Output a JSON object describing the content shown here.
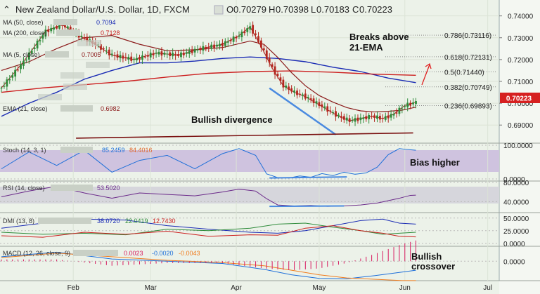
{
  "header": {
    "title": "New Zealand Dollar/U.S. Dollar, 1D, FXCM",
    "open_label": "O",
    "open": "0.70279",
    "high_label": "H",
    "high": "0.70398",
    "low_label": "L",
    "low": "0.70183",
    "close_label": "C",
    "close": "0.70223"
  },
  "overlays": [
    {
      "label": "MA (50, close)",
      "value": "0.7094",
      "color": "#1a2bb4"
    },
    {
      "label": "MA (200, close)",
      "value": "0.7128",
      "color": "#cc1e1e"
    },
    {
      "label": "MA (5, close)",
      "value": "0.7005",
      "color": "#8b1a1a"
    },
    {
      "label": "EMA (21, close)",
      "value": "0.6982",
      "color": "#8b1a1a"
    }
  ],
  "annotations": {
    "bullish_divergence": "Bullish divergence",
    "breaks_above_line1": "Breaks above",
    "breaks_above_line2": "21-EMA",
    "bias_higher": "Bias higher",
    "bullish_crossover_line1": "Bullish",
    "bullish_crossover_line2": "crossover"
  },
  "fibonacci": [
    {
      "ratio": "0.786",
      "value": "0.73116"
    },
    {
      "ratio": "0.618",
      "value": "0.72131"
    },
    {
      "ratio": "0.5",
      "value": "0.71440"
    },
    {
      "ratio": "0.382",
      "value": "0.70749"
    },
    {
      "ratio": "0.236",
      "value": "0.69893"
    }
  ],
  "price_tag": "0.70223",
  "indicators": {
    "stoch": {
      "label": "Stoch (14, 3, 1)",
      "k": "85.2459",
      "d": "84.4016",
      "k_color": "#1e6fd9",
      "d_color": "#e0662b"
    },
    "rsi": {
      "label": "RSI (14, close)",
      "value": "53.5020",
      "color": "#6b2a8a"
    },
    "dmi": {
      "label": "DMI (13, 8)",
      "plus": "38.0720",
      "minus": "22.0419",
      "adx": "12.7430",
      "plus_color": "#1a2bb4",
      "minus_color": "#2e8b3a",
      "adx_color": "#cc1e1e"
    },
    "macd": {
      "label": "MACD (12, 26, close, 9)",
      "hist": "0.0023",
      "macd": "-0.0020",
      "signal": "-0.0043",
      "hist_color": "#d81b60",
      "macd_color": "#1e6fd9",
      "signal_color": "#f07c1e"
    }
  },
  "colors": {
    "up_candle": "#2e8b3a",
    "down_candle": "#b3261e",
    "price_tag_bg": "#d62020",
    "trendline": "#4a8ae0",
    "divergence_line": "#7a1010",
    "fib_line": "#888888"
  },
  "chart_data": {
    "type": "line",
    "title": "New Zealand Dollar/U.S. Dollar, 1D, FXCM",
    "x_tick_labels": [
      "Feb",
      "Mar",
      "Apr",
      "May",
      "Jun",
      "Jul"
    ],
    "x_tick_days": [
      26,
      54,
      85,
      115,
      146,
      176
    ],
    "price_axis": {
      "ylim": [
        0.683,
        0.746
      ],
      "ticks": [
        "0.74000",
        "0.73000",
        "0.72000",
        "0.71000",
        "0.70000",
        "0.69000"
      ]
    },
    "stoch_axis": {
      "ylim": [
        -2,
        102
      ],
      "ticks": [
        "100.0000",
        "0.0000"
      ]
    },
    "rsi_axis": {
      "ylim": [
        20,
        80
      ],
      "ticks": [
        "80.0000",
        "40.0000"
      ]
    },
    "dmi_axis": {
      "ylim": [
        -3,
        58
      ],
      "ticks": [
        "50.0000",
        "25.0000",
        "0.0000"
      ]
    },
    "macd_axis": {
      "ylim": [
        -0.004,
        0.003
      ],
      "ticks": [
        "0.0000"
      ]
    },
    "series": [
      {
        "name": "MA (50, close)",
        "x": [
          0,
          10,
          20,
          30,
          40,
          50,
          60,
          70,
          80,
          90,
          100,
          110,
          120,
          130,
          140,
          150
        ],
        "y": [
          0.694,
          0.7,
          0.705,
          0.711,
          0.715,
          0.7185,
          0.7185,
          0.7193,
          0.7205,
          0.7212,
          0.7205,
          0.719,
          0.7165,
          0.7145,
          0.7115,
          0.7094
        ]
      },
      {
        "name": "MA (200, close)",
        "x": [
          0,
          15,
          30,
          45,
          60,
          75,
          90,
          105,
          120,
          135,
          150
        ],
        "y": [
          0.705,
          0.707,
          0.7085,
          0.71,
          0.712,
          0.7137,
          0.7145,
          0.7148,
          0.7142,
          0.7133,
          0.7128
        ]
      },
      {
        "name": "EMA (21, close)",
        "x": [
          0,
          10,
          20,
          30,
          40,
          50,
          60,
          70,
          80,
          90,
          95,
          100,
          105,
          110,
          115,
          120,
          125,
          130,
          135,
          140,
          145,
          150
        ],
        "y": [
          0.715,
          0.719,
          0.725,
          0.73,
          0.731,
          0.727,
          0.724,
          0.7245,
          0.7255,
          0.7285,
          0.727,
          0.721,
          0.714,
          0.708,
          0.7035,
          0.7005,
          0.698,
          0.6965,
          0.696,
          0.6963,
          0.6968,
          0.6982
        ]
      },
      {
        "name": "MA (5, close)",
        "x": [
          0,
          8,
          16,
          22,
          28,
          34,
          40,
          48,
          56,
          64,
          72,
          80,
          86,
          90,
          94,
          98,
          102,
          106,
          110,
          114,
          118,
          122,
          126,
          130,
          134,
          138,
          142,
          146,
          150
        ],
        "y": [
          0.707,
          0.719,
          0.733,
          0.736,
          0.731,
          0.727,
          0.722,
          0.72,
          0.723,
          0.722,
          0.725,
          0.727,
          0.731,
          0.735,
          0.726,
          0.716,
          0.708,
          0.705,
          0.703,
          0.7,
          0.697,
          0.694,
          0.692,
          0.693,
          0.694,
          0.693,
          0.695,
          0.699,
          0.7005
        ]
      },
      {
        "name": "Stoch (14, 3, 1)",
        "x": [
          0,
          10,
          20,
          30,
          40,
          50,
          60,
          70,
          80,
          86,
          92,
          96,
          100,
          104,
          108,
          112,
          116,
          120,
          124,
          128,
          132,
          136,
          140,
          144,
          146,
          150
        ],
        "y": [
          30,
          80,
          40,
          85,
          20,
          55,
          70,
          30,
          75,
          90,
          70,
          15,
          4,
          3,
          9,
          5,
          16,
          10,
          20,
          14,
          18,
          35,
          72,
          90,
          88,
          85
        ]
      },
      {
        "name": "RSI (14, close)",
        "x": [
          0,
          10,
          20,
          30,
          40,
          50,
          60,
          70,
          80,
          86,
          92,
          96,
          100,
          106,
          112,
          118,
          124,
          130,
          136,
          140,
          144,
          148,
          150
        ],
        "y": [
          50,
          62,
          72,
          58,
          47,
          58,
          55,
          52,
          60,
          66,
          62,
          46,
          33,
          31,
          32,
          30,
          31,
          33,
          37,
          42,
          47,
          53,
          53.5
        ]
      },
      {
        "name": "DMI +DI",
        "x": [
          0,
          15,
          30,
          45,
          60,
          75,
          90,
          100,
          110,
          120,
          130,
          138,
          144,
          150
        ],
        "y": [
          30,
          40,
          48,
          46,
          35,
          28,
          22,
          20,
          25,
          35,
          45,
          48,
          40,
          38
        ]
      },
      {
        "name": "DMI -DI",
        "x": [
          0,
          15,
          30,
          45,
          60,
          75,
          90,
          100,
          110,
          120,
          130,
          138,
          144,
          150
        ],
        "y": [
          22,
          18,
          20,
          17,
          28,
          25,
          30,
          38,
          40,
          32,
          25,
          18,
          20,
          22
        ]
      },
      {
        "name": "DMI ADX",
        "x": [
          0,
          15,
          30,
          45,
          60,
          75,
          90,
          100,
          110,
          120,
          130,
          138,
          144,
          150
        ],
        "y": [
          15,
          12,
          22,
          18,
          24,
          14,
          17,
          16,
          30,
          35,
          25,
          20,
          14,
          12.7
        ]
      },
      {
        "name": "MACD",
        "x": [
          0,
          20,
          40,
          60,
          80,
          95,
          105,
          115,
          125,
          135,
          145,
          150
        ],
        "y": [
          0.001,
          0.002,
          0.0005,
          0.0,
          -0.0005,
          -0.0018,
          -0.003,
          -0.0038,
          -0.0039,
          -0.0032,
          -0.0024,
          -0.002
        ]
      },
      {
        "name": "Signal",
        "x": [
          0,
          20,
          40,
          60,
          80,
          95,
          105,
          115,
          125,
          135,
          145,
          150
        ],
        "y": [
          0.0008,
          0.0018,
          0.001,
          0.0002,
          -0.0003,
          -0.001,
          -0.002,
          -0.003,
          -0.0037,
          -0.004,
          -0.0043,
          -0.0043
        ]
      }
    ],
    "trendlines": [
      {
        "name": "price-down-trendline",
        "x": [
          97,
          121
        ],
        "y": [
          0.7069,
          0.6856
        ]
      },
      {
        "name": "price-divergence-line",
        "x": [
          27,
          149
        ],
        "y": [
          0.684,
          0.6864
        ]
      },
      {
        "name": "stoch-divergence-line",
        "x": [
          97,
          125
        ],
        "y": [
          3,
          6
        ]
      },
      {
        "name": "rsi-divergence-line",
        "x": [
          97,
          124
        ],
        "y": [
          30,
          31
        ]
      }
    ]
  }
}
